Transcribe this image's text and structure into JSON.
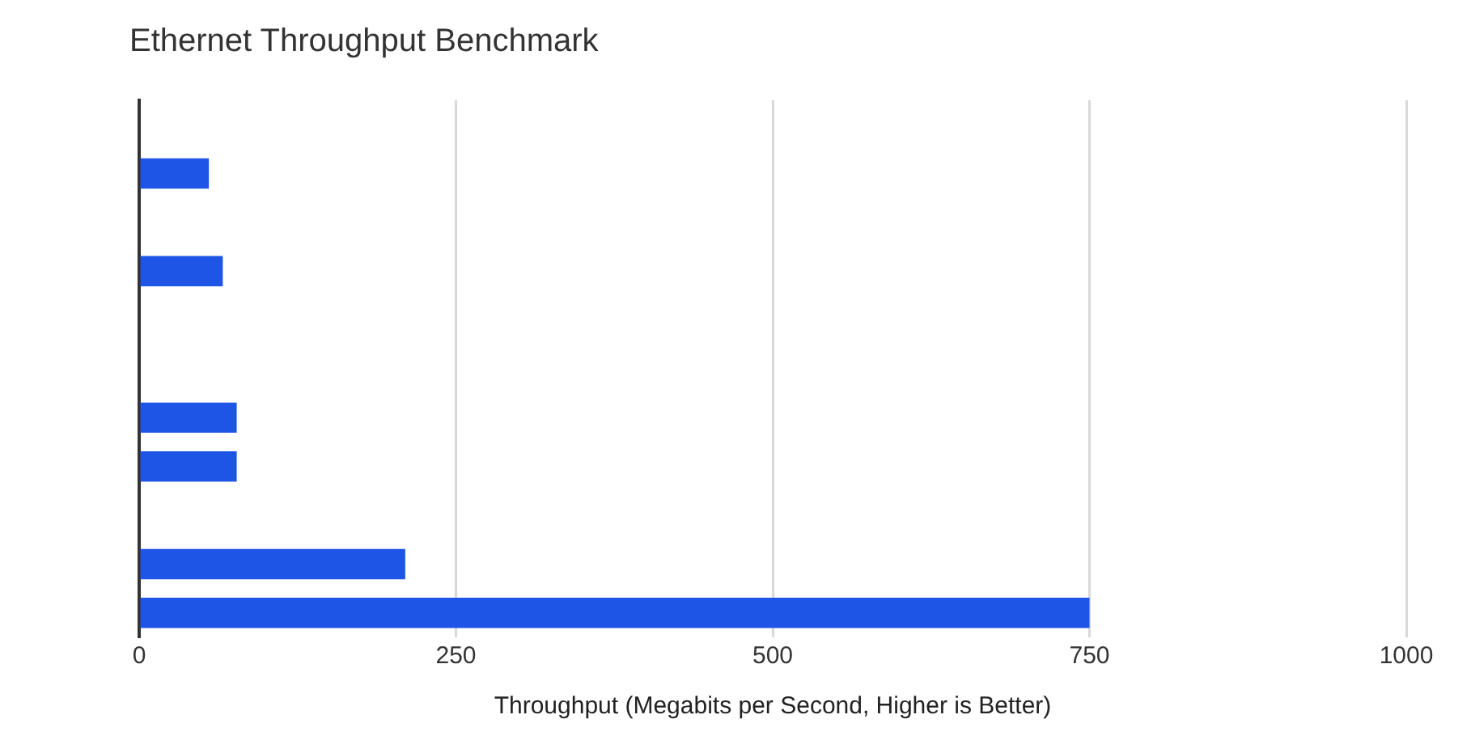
{
  "chart_data": {
    "type": "bar",
    "orientation": "horizontal",
    "title": "Ethernet Throughput Benchmark",
    "xlabel": "Throughput (Megabits per Second, Higher is Better)",
    "categories": [
      null,
      null,
      null,
      null,
      null,
      null,
      null,
      null,
      null,
      null,
      null
    ],
    "values": [
      null,
      55,
      null,
      66,
      null,
      null,
      77,
      77,
      null,
      210,
      750
    ],
    "color": "#1f55e6",
    "xlim": [
      0,
      1000
    ],
    "xticks": [
      0,
      250,
      500,
      750,
      1000
    ],
    "grid": "x",
    "legend": false
  }
}
